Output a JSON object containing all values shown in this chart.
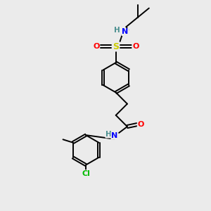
{
  "bg_color": "#ebebeb",
  "atom_colors": {
    "N": "#0000ff",
    "O": "#ff0000",
    "S": "#cccc00",
    "Cl": "#00bb00",
    "H": "#4a8f8f"
  },
  "lw": 1.4,
  "fs": 8.0
}
